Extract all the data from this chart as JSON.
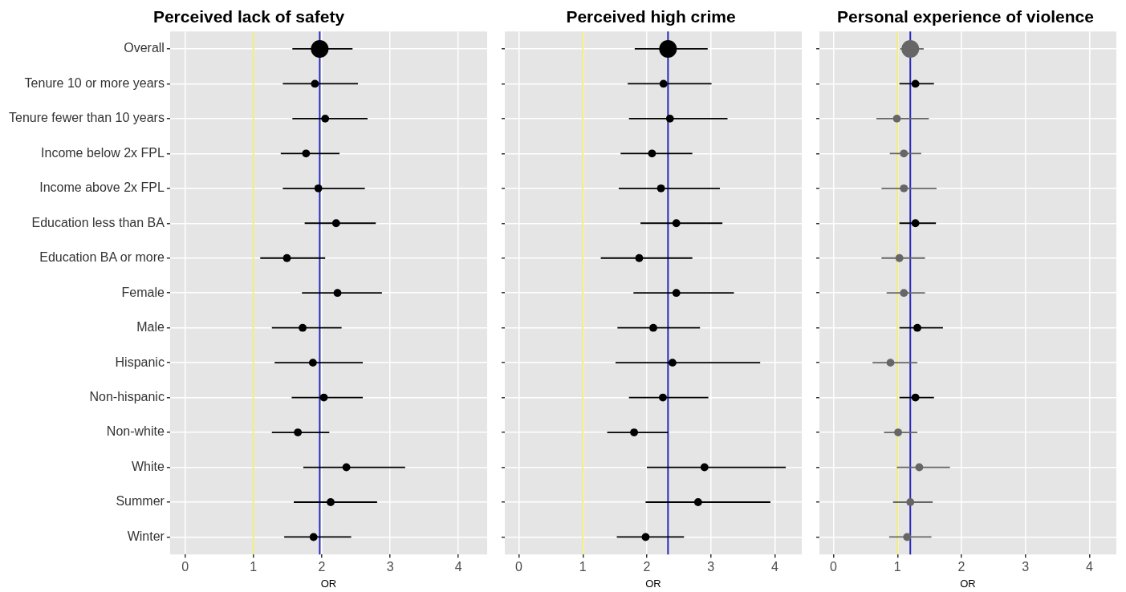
{
  "chart_data": [
    {
      "type": "bubble",
      "orientation": "horizontal",
      "title": "Perceived lack of safety",
      "xlabel": "OR",
      "xlim": [
        -0.22,
        4.42
      ],
      "xticks": [
        0,
        1,
        2,
        3,
        4
      ],
      "categories": [
        "Overall",
        "Tenure 10 or more years",
        "Tenure fewer than 10 years",
        "Income below 2x FPL",
        "Income above 2x FPL",
        "Education less than BA",
        "Education BA or more",
        "Female",
        "Male",
        "Hispanic",
        "Non-hispanic",
        "Non-white",
        "White",
        "Summer",
        "Winter"
      ],
      "grid": true,
      "legend": false,
      "marker": "circle",
      "series": [
        {
          "values": [
            1.97,
            1.9,
            2.05,
            1.77,
            1.95,
            2.21,
            1.49,
            2.23,
            1.72,
            1.87,
            2.03,
            1.65,
            2.36,
            2.13,
            1.88
          ],
          "errors": [
            [
              1.57,
              2.45
            ],
            [
              1.43,
              2.53
            ],
            [
              1.57,
              2.67
            ],
            [
              1.4,
              2.26
            ],
            [
              1.43,
              2.63
            ],
            [
              1.75,
              2.79
            ],
            [
              1.1,
              2.05
            ],
            [
              1.71,
              2.88
            ],
            [
              1.27,
              2.29
            ],
            [
              1.31,
              2.6
            ],
            [
              1.56,
              2.6
            ],
            [
              1.27,
              2.11
            ],
            [
              1.73,
              3.22
            ],
            [
              1.59,
              2.81
            ],
            [
              1.45,
              2.43
            ]
          ],
          "sizes": [
            1,
            0.2,
            0.2,
            0.2,
            0.2,
            0.2,
            0.2,
            0.2,
            0.2,
            0.2,
            0.2,
            0.2,
            0.2,
            0.2,
            0.2
          ],
          "colors": [
            "#000000",
            "#000000",
            "#000000",
            "#000000",
            "#000000",
            "#000000",
            "#000000",
            "#000000",
            "#000000",
            "#000000",
            "#000000",
            "#000000",
            "#000000",
            "#000000",
            "#000000"
          ]
        }
      ],
      "ref_lines": [
        {
          "axis": "x",
          "value": 1,
          "color": "#f2ee7a"
        },
        {
          "axis": "x",
          "value": 1.97,
          "color": "#2a2ab8"
        }
      ]
    },
    {
      "type": "bubble",
      "orientation": "horizontal",
      "title": "Perceived high crime",
      "xlabel": "OR",
      "xlim": [
        -0.22,
        4.42
      ],
      "xticks": [
        0,
        1,
        2,
        3,
        4
      ],
      "categories": [
        null,
        null,
        null,
        null,
        null,
        null,
        null,
        null,
        null,
        null,
        null,
        null,
        null,
        null,
        null
      ],
      "tick_labels": "x",
      "grid": true,
      "legend": false,
      "marker": "circle",
      "series": [
        {
          "values": [
            2.33,
            2.26,
            2.36,
            2.08,
            2.22,
            2.46,
            1.88,
            2.46,
            2.1,
            2.4,
            2.25,
            1.8,
            2.9,
            2.8,
            1.98
          ],
          "errors": [
            [
              1.81,
              2.95
            ],
            [
              1.7,
              3.01
            ],
            [
              1.72,
              3.26
            ],
            [
              1.59,
              2.71
            ],
            [
              1.56,
              3.14
            ],
            [
              1.9,
              3.18
            ],
            [
              1.28,
              2.71
            ],
            [
              1.79,
              3.36
            ],
            [
              1.54,
              2.83
            ],
            [
              1.51,
              3.77
            ],
            [
              1.72,
              2.96
            ],
            [
              1.38,
              2.33
            ],
            [
              2.0,
              4.17
            ],
            [
              1.98,
              3.93
            ],
            [
              1.53,
              2.58
            ]
          ],
          "sizes": [
            1,
            0.2,
            0.2,
            0.2,
            0.2,
            0.2,
            0.2,
            0.2,
            0.2,
            0.2,
            0.2,
            0.2,
            0.2,
            0.2,
            0.2
          ],
          "colors": [
            "#000000",
            "#000000",
            "#000000",
            "#000000",
            "#000000",
            "#000000",
            "#000000",
            "#000000",
            "#000000",
            "#000000",
            "#000000",
            "#000000",
            "#000000",
            "#000000",
            "#000000"
          ]
        }
      ],
      "ref_lines": [
        {
          "axis": "x",
          "value": 1,
          "color": "#f2ee7a"
        },
        {
          "axis": "x",
          "value": 2.33,
          "color": "#2a2ab8"
        }
      ]
    },
    {
      "type": "bubble",
      "orientation": "horizontal",
      "title": "Personal experience of violence",
      "xlabel": "OR",
      "xlim": [
        -0.22,
        4.42
      ],
      "xticks": [
        0,
        1,
        2,
        3,
        4
      ],
      "categories": [
        null,
        null,
        null,
        null,
        null,
        null,
        null,
        null,
        null,
        null,
        null,
        null,
        null,
        null,
        null
      ],
      "tick_labels": "x",
      "grid": true,
      "legend": false,
      "marker": "circle",
      "series": [
        {
          "values": [
            1.2,
            1.28,
            0.99,
            1.1,
            1.1,
            1.28,
            1.03,
            1.1,
            1.31,
            0.89,
            1.28,
            1.01,
            1.34,
            1.2,
            1.15
          ],
          "errors": [
            [
              1.04,
              1.41
            ],
            [
              1.03,
              1.57
            ],
            [
              0.67,
              1.49
            ],
            [
              0.88,
              1.37
            ],
            [
              0.75,
              1.61
            ],
            [
              1.03,
              1.6
            ],
            [
              0.75,
              1.43
            ],
            [
              0.83,
              1.43
            ],
            [
              1.03,
              1.71
            ],
            [
              0.61,
              1.31
            ],
            [
              1.03,
              1.57
            ],
            [
              0.79,
              1.31
            ],
            [
              0.99,
              1.82
            ],
            [
              0.93,
              1.55
            ],
            [
              0.87,
              1.53
            ]
          ],
          "sizes": [
            1,
            0.2,
            0.2,
            0.2,
            0.2,
            0.2,
            0.2,
            0.2,
            0.2,
            0.2,
            0.2,
            0.2,
            0.2,
            0.2,
            0.2
          ],
          "colors": [
            "#666666",
            "#000000",
            "#666666",
            "#666666",
            "#666666",
            "#000000",
            "#666666",
            "#666666",
            "#000000",
            "#666666",
            "#000000",
            "#666666",
            "#666666",
            "#666666",
            "#666666"
          ]
        }
      ],
      "ref_lines": [
        {
          "axis": "x",
          "value": 1,
          "color": "#f2ee7a"
        },
        {
          "axis": "x",
          "value": 1.2,
          "color": "#2a2ab8"
        }
      ]
    }
  ]
}
